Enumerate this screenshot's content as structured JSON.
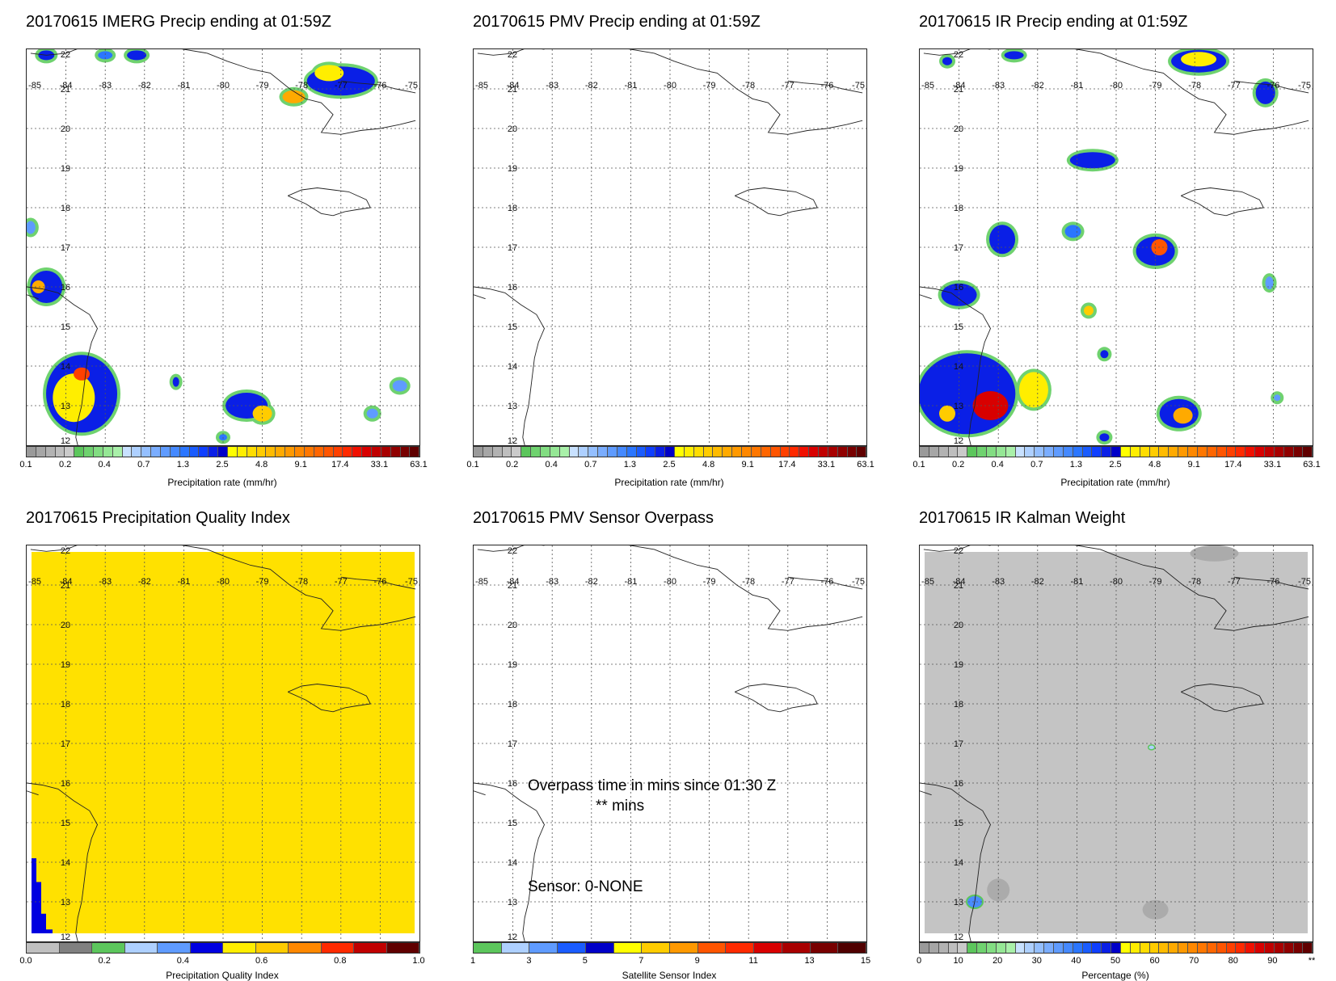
{
  "panels": [
    {
      "id": "imerg",
      "title": "20170615 IMERG Precip ending at 01:59Z",
      "colorbar": {
        "label": "Precipitation rate (mm/hr)",
        "ticks": [
          "0.1",
          "0.2",
          "0.4",
          "0.7",
          "1.3",
          "2.5",
          "4.8",
          "9.1",
          "17.4",
          "33.1",
          "63.1"
        ],
        "colors": [
          "#9a9a9a",
          "#a6a6a6",
          "#b2b2b2",
          "#bebebe",
          "#cacaca",
          "#5cc65c",
          "#6fd26f",
          "#82dd82",
          "#95e795",
          "#a9f0a9",
          "#c8e1ff",
          "#aed0ff",
          "#94bfff",
          "#7aadff",
          "#5f9bff",
          "#4589ff",
          "#2b76ff",
          "#1a5cff",
          "#0f3fff",
          "#0a1fe6",
          "#0000c8",
          "#ffff00",
          "#ffee00",
          "#ffdd00",
          "#ffcc00",
          "#ffbb00",
          "#ffaa00",
          "#ff9900",
          "#ff8800",
          "#ff7700",
          "#ff6600",
          "#ff5500",
          "#ff4000",
          "#ff2a00",
          "#f01000",
          "#d80000",
          "#c00000",
          "#a80000",
          "#900000",
          "#780000",
          "#600000"
        ]
      },
      "has_precip": true
    },
    {
      "id": "pmv",
      "title": "20170615 PMV Precip ending at 01:59Z",
      "colorbar": {
        "label": "Precipitation rate (mm/hr)",
        "ticks": [
          "0.1",
          "0.2",
          "0.4",
          "0.7",
          "1.3",
          "2.5",
          "4.8",
          "9.1",
          "17.4",
          "33.1",
          "63.1"
        ],
        "colors": [
          "#9a9a9a",
          "#a6a6a6",
          "#b2b2b2",
          "#bebebe",
          "#cacaca",
          "#5cc65c",
          "#6fd26f",
          "#82dd82",
          "#95e795",
          "#a9f0a9",
          "#c8e1ff",
          "#aed0ff",
          "#94bfff",
          "#7aadff",
          "#5f9bff",
          "#4589ff",
          "#2b76ff",
          "#1a5cff",
          "#0f3fff",
          "#0a1fe6",
          "#0000c8",
          "#ffff00",
          "#ffee00",
          "#ffdd00",
          "#ffcc00",
          "#ffbb00",
          "#ffaa00",
          "#ff9900",
          "#ff8800",
          "#ff7700",
          "#ff6600",
          "#ff5500",
          "#ff4000",
          "#ff2a00",
          "#f01000",
          "#d80000",
          "#c00000",
          "#a80000",
          "#900000",
          "#780000",
          "#600000"
        ]
      },
      "has_precip": false
    },
    {
      "id": "ir",
      "title": "20170615 IR Precip ending at 01:59Z",
      "colorbar": {
        "label": "Precipitation rate (mm/hr)",
        "ticks": [
          "0.1",
          "0.2",
          "0.4",
          "0.7",
          "1.3",
          "2.5",
          "4.8",
          "9.1",
          "17.4",
          "33.1",
          "63.1"
        ],
        "colors": [
          "#9a9a9a",
          "#a6a6a6",
          "#b2b2b2",
          "#bebebe",
          "#cacaca",
          "#5cc65c",
          "#6fd26f",
          "#82dd82",
          "#95e795",
          "#a9f0a9",
          "#c8e1ff",
          "#aed0ff",
          "#94bfff",
          "#7aadff",
          "#5f9bff",
          "#4589ff",
          "#2b76ff",
          "#1a5cff",
          "#0f3fff",
          "#0a1fe6",
          "#0000c8",
          "#ffff00",
          "#ffee00",
          "#ffdd00",
          "#ffcc00",
          "#ffbb00",
          "#ffaa00",
          "#ff9900",
          "#ff8800",
          "#ff7700",
          "#ff6600",
          "#ff5500",
          "#ff4000",
          "#ff2a00",
          "#f01000",
          "#d80000",
          "#c00000",
          "#a80000",
          "#900000",
          "#780000",
          "#600000"
        ]
      },
      "has_precip": true
    },
    {
      "id": "pqi",
      "title": "20170615 Precipitation Quality Index",
      "colorbar": {
        "label": "Precipitation Quality Index",
        "ticks": [
          "0.0",
          "0.2",
          "0.4",
          "0.6",
          "0.8",
          "1.0"
        ],
        "colors": [
          "#c0c0c0",
          "#808080",
          "#5cc65c",
          "#aed0ff",
          "#5f9bff",
          "#0000e0",
          "#ffee00",
          "#ffcc00",
          "#ff8800",
          "#ff2a00",
          "#c00000",
          "#600000"
        ]
      },
      "has_precip": false
    },
    {
      "id": "overpass",
      "title": "20170615 PMV Sensor Overpass",
      "colorbar": {
        "label": "Satellite Sensor Index",
        "ticks": [
          "1",
          "3",
          "5",
          "7",
          "9",
          "11",
          "13",
          "15"
        ],
        "colors": [
          "#5cc65c",
          "#aed0ff",
          "#5f9bff",
          "#1a5cff",
          "#0000c8",
          "#ffff00",
          "#ffcc00",
          "#ff9900",
          "#ff5500",
          "#ff2a00",
          "#d80000",
          "#a80000",
          "#780000",
          "#500000"
        ]
      },
      "overlay": {
        "line1": "Overpass time in mins since 01:30 Z",
        "line2": "** mins",
        "line3": "Sensor:   0-NONE"
      },
      "has_precip": false
    },
    {
      "id": "kalman",
      "title": "20170615 IR Kalman Weight",
      "colorbar": {
        "label": "Percentage (%)",
        "ticks": [
          "0",
          "10",
          "20",
          "30",
          "40",
          "50",
          "60",
          "70",
          "80",
          "90",
          "**"
        ],
        "colors": [
          "#9a9a9a",
          "#a6a6a6",
          "#b2b2b2",
          "#bebebe",
          "#cacaca",
          "#5cc65c",
          "#6fd26f",
          "#82dd82",
          "#95e795",
          "#a9f0a9",
          "#c8e1ff",
          "#aed0ff",
          "#94bfff",
          "#7aadff",
          "#5f9bff",
          "#4589ff",
          "#2b76ff",
          "#1a5cff",
          "#0f3fff",
          "#0a1fe6",
          "#0000c8",
          "#ffff00",
          "#ffee00",
          "#ffdd00",
          "#ffcc00",
          "#ffbb00",
          "#ffaa00",
          "#ff9900",
          "#ff8800",
          "#ff7700",
          "#ff6600",
          "#ff5500",
          "#ff4000",
          "#ff2a00",
          "#f01000",
          "#d80000",
          "#c00000",
          "#a80000",
          "#900000",
          "#780000",
          "#600000"
        ]
      },
      "has_precip": false
    }
  ],
  "chart_data": {
    "type": "heatmap",
    "lon_ticks": [
      "-85",
      "-84",
      "-83",
      "-82",
      "-81",
      "-80",
      "-79",
      "-78",
      "-77",
      "-76",
      "-75"
    ],
    "lat_ticks": [
      "22",
      "21",
      "20",
      "19",
      "18",
      "17",
      "16",
      "15",
      "14",
      "13",
      "12"
    ],
    "lon_range": [
      -85,
      -75
    ],
    "lat_range": [
      12,
      22
    ],
    "background_colors": {
      "pqi": "#ffe100",
      "kalman": "#c4c4c4"
    }
  }
}
